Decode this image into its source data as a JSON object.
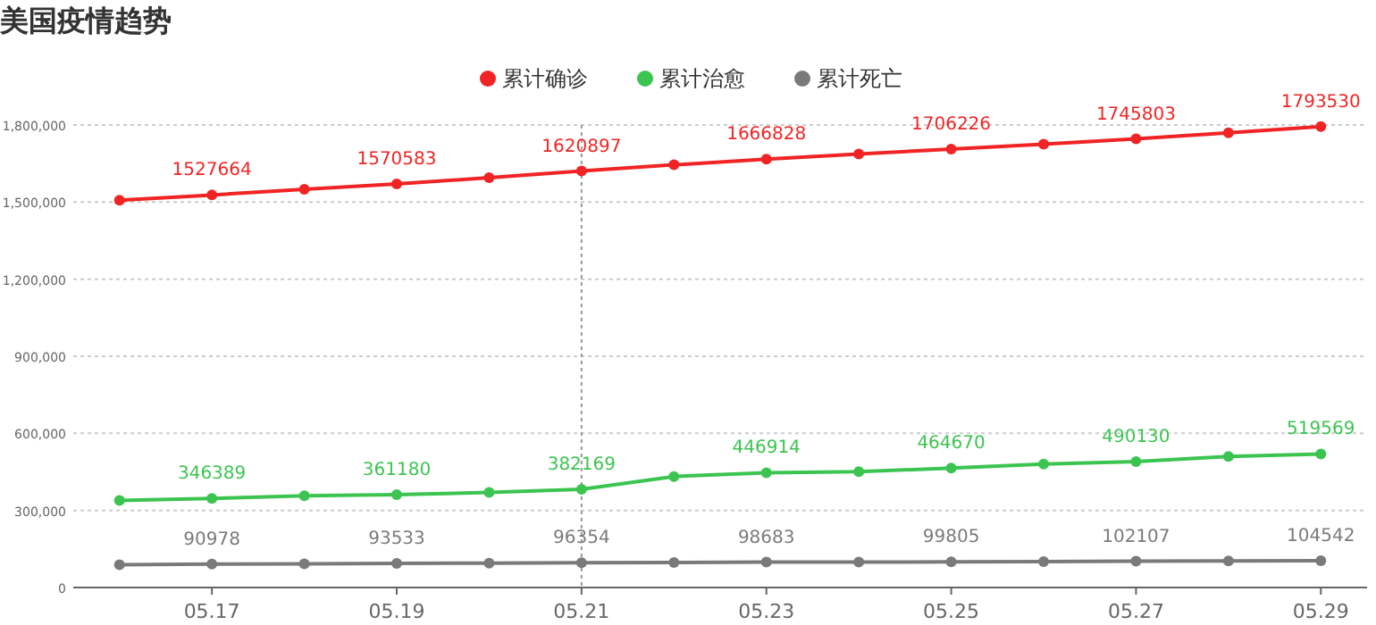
{
  "chart_data": {
    "type": "line",
    "title": "美国疫情趋势",
    "categories": [
      null,
      "05.17",
      null,
      "05.19",
      null,
      "05.21",
      null,
      "05.23",
      null,
      "05.25",
      null,
      "05.27",
      null,
      "05.29"
    ],
    "series": [
      {
        "name": "累计确诊",
        "color": "#f02424",
        "values": [
          1507000,
          1527664,
          1550000,
          1570583,
          1595000,
          1620897,
          1645000,
          1666828,
          1687000,
          1706226,
          1725000,
          1745803,
          1770000,
          1793530
        ],
        "value_labels": [
          null,
          "1527664",
          null,
          "1570583",
          null,
          "1620897",
          null,
          "1666828",
          null,
          "1706226",
          null,
          "1745803",
          null,
          "1793530"
        ]
      },
      {
        "name": "累计治愈",
        "color": "#3cc451",
        "values": [
          339000,
          346389,
          357000,
          361180,
          370000,
          382169,
          432000,
          446914,
          451000,
          464670,
          480000,
          490130,
          510000,
          519569
        ],
        "value_labels": [
          null,
          "346389",
          null,
          "361180",
          null,
          "382169",
          null,
          "446914",
          null,
          "464670",
          null,
          "490130",
          null,
          "519569"
        ]
      },
      {
        "name": "累计死亡",
        "color": "#7a7a7a",
        "values": [
          89000,
          90978,
          92000,
          93533,
          95000,
          96354,
          97500,
          98683,
          99000,
          99805,
          101000,
          102107,
          103500,
          104542
        ],
        "value_labels": [
          null,
          "90978",
          null,
          "93533",
          null,
          "96354",
          null,
          "98683",
          null,
          "99805",
          null,
          "102107",
          null,
          "104542"
        ]
      }
    ],
    "ylim": [
      0,
      1800000
    ],
    "yticks": [
      {
        "value": 0,
        "label": "0"
      },
      {
        "value": 300000,
        "label": "300,000"
      },
      {
        "value": 600000,
        "label": "600,000"
      },
      {
        "value": 900000,
        "label": "900,000"
      },
      {
        "value": 1200000,
        "label": "1,200,000"
      },
      {
        "value": 1500000,
        "label": "1,500,000"
      },
      {
        "value": 1800000,
        "label": "1,800,000"
      }
    ],
    "grid": "y",
    "legend": "top",
    "marker": "circle",
    "ref_lines": [
      {
        "axis": "x",
        "value": "05.21",
        "color": "#999999",
        "line_style": "dotted"
      }
    ]
  }
}
